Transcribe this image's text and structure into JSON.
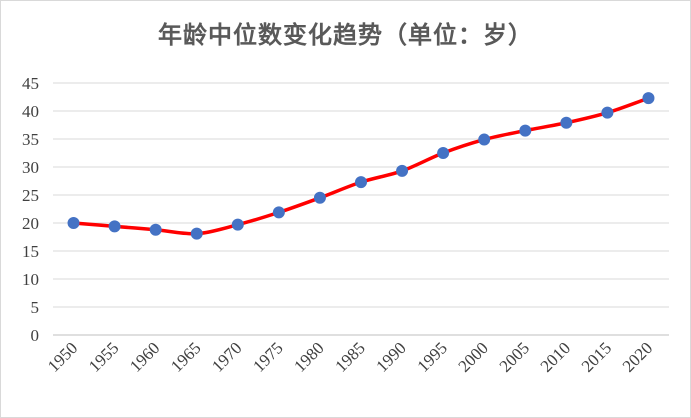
{
  "chart_data": {
    "type": "line",
    "title": "年龄中位数变化趋势（单位：岁）",
    "xlabel": "",
    "ylabel": "",
    "ylim": [
      0,
      45
    ],
    "yticks": [
      0,
      5,
      10,
      15,
      20,
      25,
      30,
      35,
      40,
      45
    ],
    "grid": true,
    "legend": "none",
    "x": [
      "1950",
      "1955",
      "1960",
      "1965",
      "1970",
      "1975",
      "1980",
      "1985",
      "1990",
      "1995",
      "2000",
      "2005",
      "2010",
      "2015",
      "2020"
    ],
    "series": [
      {
        "values": [
          20.0,
          19.4,
          18.8,
          18.1,
          19.7,
          21.9,
          24.5,
          27.3,
          29.3,
          32.5,
          34.9,
          36.5,
          37.9,
          39.7,
          42.3
        ],
        "line_color": "#ff0000",
        "marker_color": "#4472c4"
      }
    ]
  }
}
